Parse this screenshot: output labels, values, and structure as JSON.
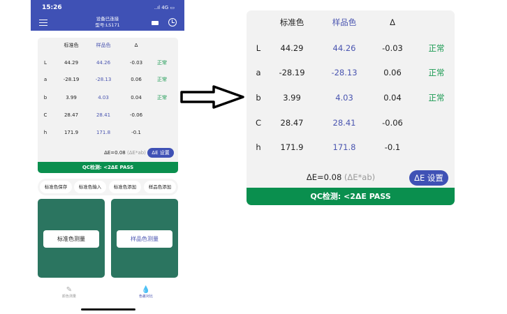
{
  "status_bar": {
    "time": "15:26",
    "signal": "..ıl 4G ▭"
  },
  "header": {
    "line1": "设备已连接",
    "line2": "型号:LS171"
  },
  "table": {
    "columns": [
      "",
      "标准色",
      "样品色",
      "Δ",
      ""
    ],
    "rows": [
      {
        "label": "L",
        "standard": "44.29",
        "sample": "44.26",
        "delta": "-0.03",
        "status": "正常"
      },
      {
        "label": "a",
        "standard": "-28.19",
        "sample": "-28.13",
        "delta": "0.06",
        "status": "正常"
      },
      {
        "label": "b",
        "standard": "3.99",
        "sample": "4.03",
        "delta": "0.04",
        "status": "正常"
      },
      {
        "label": "C",
        "standard": "28.47",
        "sample": "28.41",
        "delta": "-0.06",
        "status": ""
      },
      {
        "label": "h",
        "standard": "171.9",
        "sample": "171.8",
        "delta": "-0.1",
        "status": ""
      }
    ],
    "delta_e": "ΔE=0.08",
    "delta_e_unit": "(ΔE*ab)",
    "delta_e_button": "ΔE 设置",
    "qc": "QC检测:  <2ΔE    PASS"
  },
  "actions": [
    "标准色保存",
    "标准色输入",
    "标准色添加",
    "样品色添加"
  ],
  "measure": {
    "standard": "标准色测量",
    "sample": "样品色测量"
  },
  "tabs": [
    {
      "label": "颜色测量",
      "active": false
    },
    {
      "label": "色差对比",
      "active": true
    }
  ],
  "colors": {
    "primary": "#3f51b5",
    "pass": "#0a8f4e",
    "panel": "#2b7560",
    "normal": "#1a9a52"
  }
}
